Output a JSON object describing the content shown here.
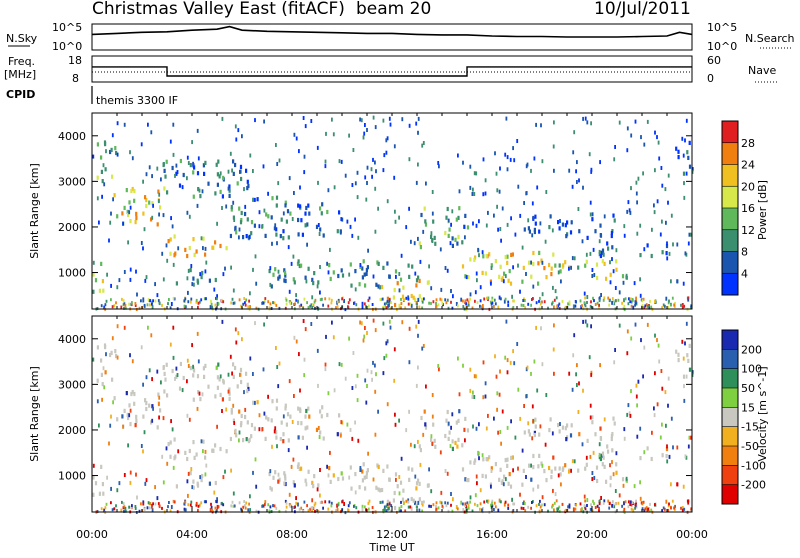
{
  "header": {
    "station_title": "Christmas Valley East (fitACF)",
    "beam": "beam 20",
    "date": "10/Jul/2011"
  },
  "nsky_panel": {
    "left_label": "N.Sky",
    "left_ticks": [
      "10^5",
      "10^0"
    ],
    "right_ticks": [
      "10^5",
      "10^0"
    ],
    "right_label": "N.Search"
  },
  "freq_panel": {
    "left_label_1": "Freq.",
    "left_label_2": "[MHz]",
    "left_ticks": [
      "18",
      "8"
    ],
    "right_ticks": [
      "60",
      "0"
    ],
    "right_label": "Nave"
  },
  "cpid": {
    "label": "CPID",
    "program": "themis 3300 IF"
  },
  "x_axis": {
    "ticks": [
      "00:00",
      "04:00",
      "08:00",
      "12:00",
      "16:00",
      "20:00",
      "00:00"
    ],
    "title": "Time UT"
  },
  "colors": {
    "frame": "#000000",
    "velocity_ground": "#c8c8c0"
  },
  "chart_data": [
    {
      "type": "line",
      "panel": "noise",
      "x_range_hours": [
        0,
        24
      ],
      "series": [
        {
          "x": [
            0,
            1,
            2,
            3,
            4,
            5,
            5.5,
            6,
            7,
            8,
            9,
            10,
            11,
            12,
            13,
            14,
            15,
            16,
            17,
            18,
            19,
            20,
            21,
            22,
            23,
            23.5,
            24
          ],
          "values": [
            3.0,
            3.2,
            3.4,
            3.5,
            3.8,
            4.0,
            4.5,
            3.8,
            3.6,
            3.5,
            3.4,
            3.3,
            3.2,
            3.2,
            3.0,
            2.9,
            2.9,
            2.7,
            2.6,
            2.6,
            2.5,
            2.5,
            2.5,
            2.6,
            2.7,
            3.4,
            3.0
          ]
        }
      ]
    },
    {
      "type": "line",
      "panel": "frequency",
      "y_ticks_left": [
        8,
        18
      ],
      "x_range_hours": [
        0,
        24
      ],
      "series": [
        {
          "x": [
            0,
            3,
            3,
            15,
            15,
            24
          ],
          "values": [
            14.3,
            14.3,
            10.5,
            10.5,
            14.3,
            14.3
          ]
        }
      ]
    },
    {
      "type": "heatmap",
      "panel": "power",
      "ylabel": "Slant Range [km]",
      "yticks": [
        1000,
        2000,
        3000,
        4000
      ],
      "ylim": [
        200,
        4500
      ],
      "xlim_hours": [
        0,
        24
      ],
      "colorbar": {
        "label": "Power [dB]",
        "ticks": [
          4,
          8,
          12,
          16,
          20,
          24,
          28
        ],
        "colors": [
          "#0033ff",
          "#1a55b0",
          "#3b8f6e",
          "#5fb85a",
          "#d6e84a",
          "#f0c020",
          "#f07f10",
          "#e02020"
        ]
      },
      "echo_regions": [
        {
          "t0": 0.0,
          "t1": 0.6,
          "r0": 600,
          "r1": 1300,
          "power": 16
        },
        {
          "t0": 0.1,
          "t1": 1.0,
          "r0": 3000,
          "r1": 3900,
          "power": 12
        },
        {
          "t0": 0.6,
          "t1": 2.9,
          "r0": 2100,
          "r1": 2900,
          "power": 20
        },
        {
          "t0": 3.0,
          "t1": 5.5,
          "r0": 1400,
          "r1": 1900,
          "power": 22
        },
        {
          "t0": 3.2,
          "t1": 5.0,
          "r0": 800,
          "r1": 1100,
          "power": 10
        },
        {
          "t0": 2.8,
          "t1": 6.5,
          "r0": 2700,
          "r1": 3500,
          "power": 8
        },
        {
          "t0": 5.5,
          "t1": 10.0,
          "r0": 1800,
          "r1": 2700,
          "power": 8
        },
        {
          "t0": 7.0,
          "t1": 13.0,
          "r0": 700,
          "r1": 1300,
          "power": 10
        },
        {
          "t0": 11.5,
          "t1": 13.5,
          "r0": 300,
          "r1": 900,
          "power": 22
        },
        {
          "t0": 13.0,
          "t1": 15.0,
          "r0": 1600,
          "r1": 2500,
          "power": 12
        },
        {
          "t0": 14.5,
          "t1": 18.5,
          "r0": 800,
          "r1": 1500,
          "power": 20
        },
        {
          "t0": 18.5,
          "t1": 21.5,
          "r0": 900,
          "r1": 1300,
          "power": 16
        },
        {
          "t0": 17.0,
          "t1": 21.0,
          "r0": 1800,
          "r1": 2300,
          "power": 6
        },
        {
          "t0": 20.0,
          "t1": 23.0,
          "r0": 1400,
          "r1": 1700,
          "power": 6
        },
        {
          "t0": 23.2,
          "t1": 24.0,
          "r0": 3200,
          "r1": 3900,
          "power": 6
        }
      ]
    },
    {
      "type": "heatmap",
      "panel": "velocity",
      "ylabel": "Slant Range [km]",
      "yticks": [
        1000,
        2000,
        3000,
        4000
      ],
      "ylim": [
        200,
        4500
      ],
      "xlim_hours": [
        0,
        24
      ],
      "colorbar": {
        "label": "Velocity [m s^-1]",
        "ticks": [
          200,
          100,
          50,
          15,
          -15,
          -50,
          -100,
          -200
        ],
        "colors": [
          "#1a2ab0",
          "#2a5fb0",
          "#2f8f5a",
          "#7fd040",
          "#c8c8c0",
          "#f0b020",
          "#f07f10",
          "#f04010",
          "#e00000"
        ]
      }
    }
  ]
}
